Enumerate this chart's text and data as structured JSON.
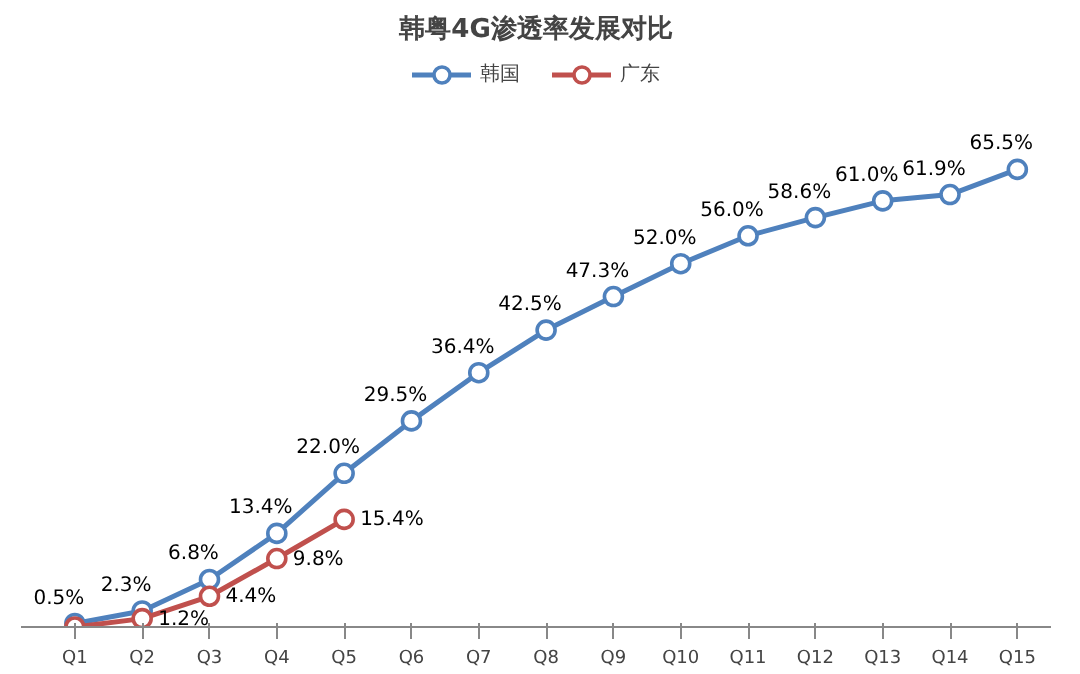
{
  "chart_data": {
    "type": "line",
    "title": "韩粤4G渗透率发展对比",
    "categories": [
      "Q1",
      "Q2",
      "Q3",
      "Q4",
      "Q5",
      "Q6",
      "Q7",
      "Q8",
      "Q9",
      "Q10",
      "Q11",
      "Q12",
      "Q13",
      "Q14",
      "Q15"
    ],
    "series": [
      {
        "name": "韩国",
        "color": "#4f81bd",
        "values": [
          0.5,
          2.3,
          6.8,
          13.4,
          22.0,
          29.5,
          36.4,
          42.5,
          47.3,
          52.0,
          56.0,
          58.6,
          61.0,
          61.9,
          65.5
        ],
        "value_labels": [
          "0.5%",
          "2.3%",
          "6.8%",
          "13.4%",
          "22.0%",
          "29.5%",
          "36.4%",
          "42.5%",
          "47.3%",
          "52.0%",
          "56.0%",
          "58.6%",
          "61.0%",
          "61.9%",
          "65.5%"
        ]
      },
      {
        "name": "广东",
        "color": "#c0504d",
        "values": [
          0,
          1.2,
          4.4,
          9.8,
          15.4,
          null,
          null,
          null,
          null,
          null,
          null,
          null,
          null,
          null,
          null
        ],
        "value_labels": [
          null,
          "1.2%",
          "4.4%",
          "9.8%",
          "15.4%",
          null,
          null,
          null,
          null,
          null,
          null,
          null,
          null,
          null,
          null
        ]
      }
    ],
    "marker": "circle",
    "line_style": "solid",
    "legend": "top",
    "grid": false
  }
}
